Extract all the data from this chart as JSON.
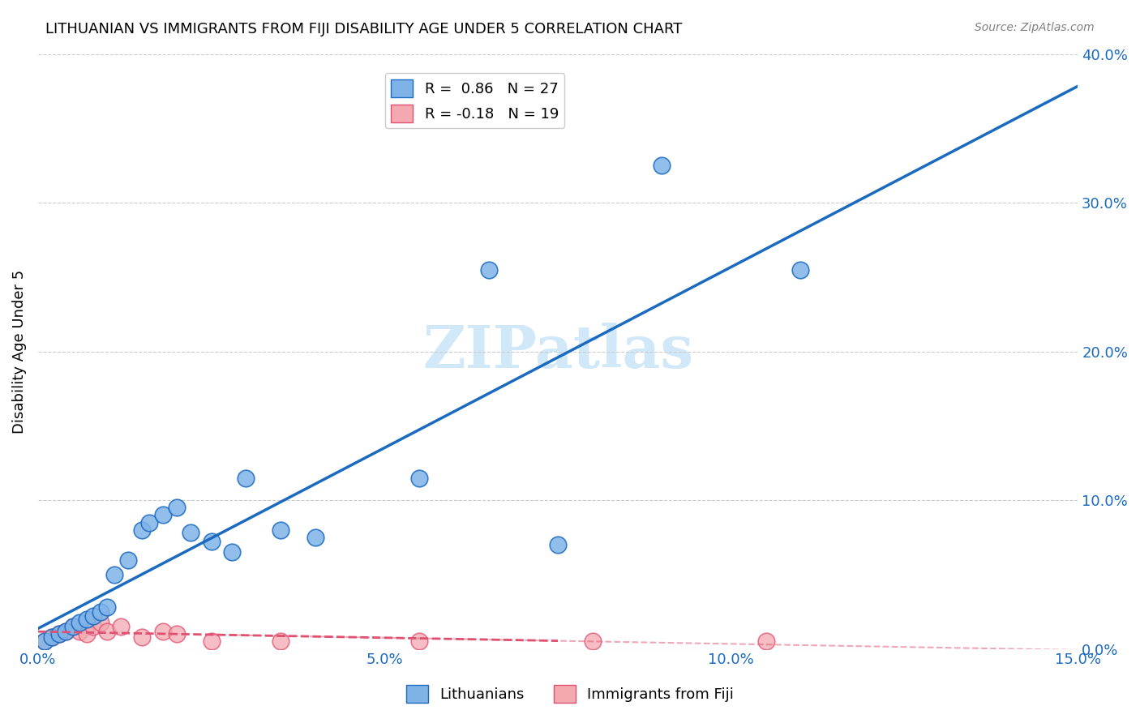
{
  "title": "LITHUANIAN VS IMMIGRANTS FROM FIJI DISABILITY AGE UNDER 5 CORRELATION CHART",
  "source": "Source: ZipAtlas.com",
  "ylabel": "Disability Age Under 5",
  "xlabel_bottom": "",
  "xmin": 0.0,
  "xmax": 0.15,
  "ymin": 0.0,
  "ymax": 0.4,
  "yticks_right": [
    0.0,
    0.1,
    0.2,
    0.3,
    0.4
  ],
  "ytick_labels_right": [
    "0.0%",
    "10.0%",
    "20.0%",
    "30.0%",
    "40.0%"
  ],
  "xticks": [
    0.0,
    0.05,
    0.1,
    0.15
  ],
  "xtick_labels": [
    "0.0%",
    "5.0%",
    "10.0%",
    "15.0%"
  ],
  "blue_R": 0.86,
  "blue_N": 27,
  "pink_R": -0.18,
  "pink_N": 19,
  "blue_color": "#7fb3e8",
  "blue_line_color": "#1a6abf",
  "pink_color": "#f4a8b0",
  "pink_line_color": "#e05070",
  "blue_scatter_x": [
    0.001,
    0.002,
    0.003,
    0.004,
    0.005,
    0.006,
    0.007,
    0.008,
    0.009,
    0.01,
    0.011,
    0.013,
    0.015,
    0.016,
    0.018,
    0.02,
    0.022,
    0.025,
    0.028,
    0.03,
    0.035,
    0.04,
    0.055,
    0.065,
    0.075,
    0.09,
    0.11
  ],
  "blue_scatter_y": [
    0.005,
    0.008,
    0.01,
    0.012,
    0.015,
    0.018,
    0.02,
    0.022,
    0.025,
    0.028,
    0.05,
    0.06,
    0.08,
    0.085,
    0.09,
    0.095,
    0.078,
    0.072,
    0.065,
    0.115,
    0.08,
    0.075,
    0.115,
    0.255,
    0.07,
    0.325,
    0.255
  ],
  "pink_scatter_x": [
    0.001,
    0.002,
    0.003,
    0.004,
    0.005,
    0.006,
    0.007,
    0.008,
    0.009,
    0.01,
    0.012,
    0.015,
    0.018,
    0.02,
    0.025,
    0.035,
    0.055,
    0.08,
    0.105
  ],
  "pink_scatter_y": [
    0.005,
    0.008,
    0.01,
    0.012,
    0.015,
    0.012,
    0.01,
    0.015,
    0.018,
    0.012,
    0.015,
    0.008,
    0.012,
    0.01,
    0.005,
    0.005,
    0.005,
    0.005,
    0.005
  ],
  "watermark_text": "ZIPatlas",
  "watermark_color": "#d0e8f8",
  "background_color": "#ffffff",
  "grid_color": "#cccccc"
}
